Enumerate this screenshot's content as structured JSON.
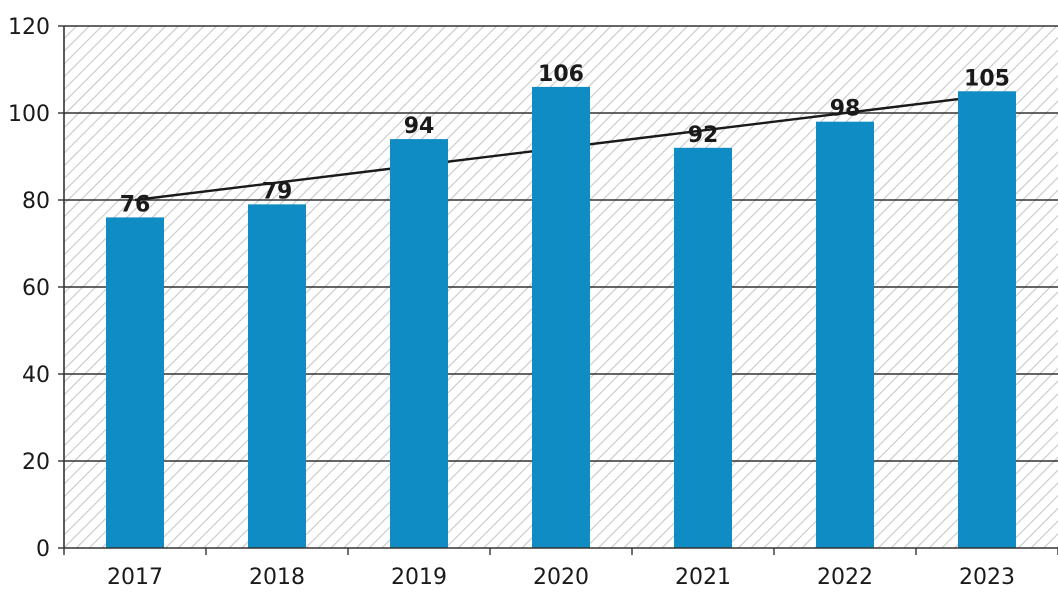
{
  "chart_data": {
    "type": "bar",
    "title": "",
    "xlabel": "",
    "ylabel": "",
    "categories": [
      "2017",
      "2018",
      "2019",
      "2020",
      "2021",
      "2022",
      "2023"
    ],
    "series": [
      {
        "values": [
          76,
          79,
          94,
          106,
          92,
          98,
          105
        ]
      }
    ],
    "data_labels": [
      "76",
      "79",
      "94",
      "106",
      "92",
      "98",
      "105"
    ],
    "trendline": {
      "type": "linear",
      "from_category": "2017",
      "to_category": "2023",
      "start_value": 80,
      "end_value": 104
    },
    "ylim": [
      0,
      120
    ],
    "yticks": [
      0,
      20,
      40,
      60,
      80,
      100,
      120
    ],
    "ytick_labels": [
      "0",
      "20",
      "40",
      "60",
      "80",
      "100",
      "120"
    ],
    "grid": true,
    "background": "diagonal hatch",
    "legend": "none",
    "colors": {
      "bar": "#0f8cc3",
      "trendline": "#1a1a1a",
      "grid": "#333333",
      "hatch": "#c8c8c8"
    }
  }
}
